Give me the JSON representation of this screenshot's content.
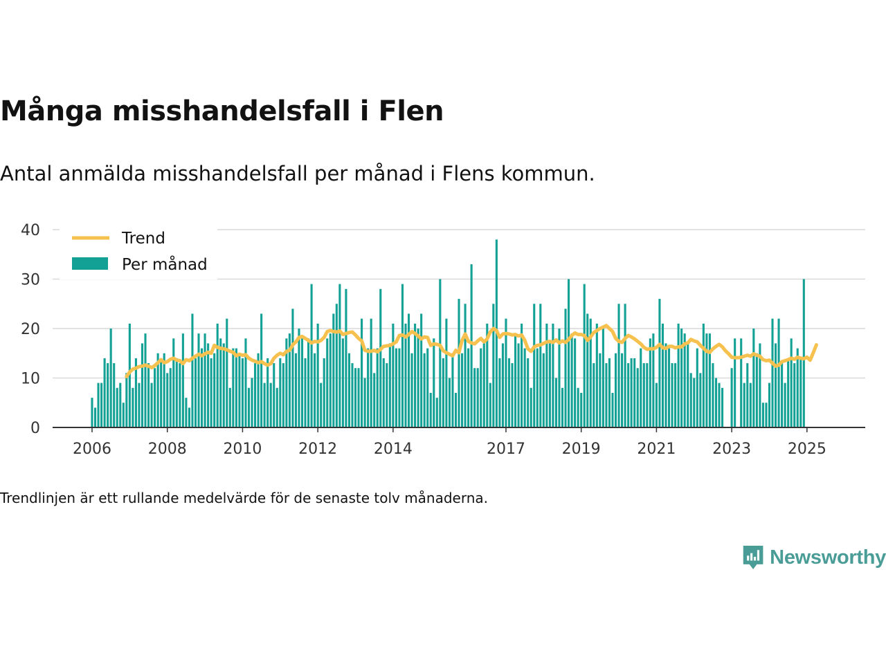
{
  "header": {
    "title": "Många misshandelsfall i Flen",
    "subtitle": "Antal anmälda misshandelsfall per månad i Flens kommun."
  },
  "footer": {
    "note": "Trendlinjen är ett rullande medelvärde för de senaste tolv månaderna.",
    "brand": "Newsworthy"
  },
  "colors": {
    "bars": "#13a196",
    "trend": "#f7c14f",
    "grid": "#d9d9d9",
    "axis": "#333333",
    "brand": "#4a9d96"
  },
  "chart_data": {
    "type": "bar",
    "title": "Många misshandelsfall i Flen",
    "subtitle": "Antal anmälda misshandelsfall per månad i Flens kommun.",
    "x_start": "2006-01",
    "x_ticks": [
      "2006",
      "2008",
      "2010",
      "2012",
      "2014",
      "2017",
      "2019",
      "2021",
      "2023",
      "2025"
    ],
    "y_ticks": [
      0,
      10,
      20,
      30,
      40
    ],
    "ylim": [
      0,
      40
    ],
    "grid": true,
    "legend_position": "top-left",
    "legend": [
      "Trend",
      "Per månad"
    ],
    "series": [
      {
        "name": "Per månad",
        "type": "bar",
        "values": [
          6,
          4,
          9,
          9,
          14,
          13,
          20,
          13,
          8,
          9,
          5,
          11,
          21,
          8,
          14,
          9,
          17,
          19,
          13,
          9,
          12,
          15,
          14,
          15,
          11,
          12,
          18,
          14,
          13,
          19,
          6,
          4,
          23,
          14,
          19,
          16,
          19,
          17,
          14,
          15,
          21,
          18,
          17,
          22,
          8,
          16,
          16,
          15,
          14,
          18,
          8,
          10,
          13,
          15,
          23,
          9,
          14,
          9,
          13,
          8,
          14,
          13,
          18,
          19,
          24,
          15,
          20,
          18,
          14,
          18,
          29,
          15,
          21,
          9,
          14,
          18,
          19,
          23,
          25,
          29,
          18,
          28,
          15,
          13,
          12,
          12,
          22,
          10,
          16,
          22,
          11,
          16,
          28,
          14,
          13,
          17,
          21,
          16,
          16,
          29,
          21,
          23,
          15,
          21,
          20,
          23,
          15,
          16,
          7,
          18,
          6,
          30,
          14,
          22,
          10,
          15,
          7,
          26,
          15,
          25,
          16,
          33,
          12,
          12,
          16,
          17,
          21,
          9,
          25,
          38,
          14,
          17,
          22,
          14,
          13,
          19,
          17,
          21,
          16,
          14,
          8,
          25,
          16,
          25,
          15,
          21,
          17,
          21,
          10,
          20,
          8,
          24,
          30,
          19,
          18,
          8,
          7,
          29,
          23,
          22,
          13,
          21,
          15,
          20,
          13,
          14,
          7,
          15,
          25,
          15,
          25,
          13,
          14,
          14,
          12,
          16,
          13,
          13,
          18,
          19,
          9,
          26,
          21,
          17,
          16,
          13,
          13,
          21,
          20,
          19,
          17,
          11,
          10,
          16,
          11,
          21,
          19,
          19,
          13,
          10,
          9,
          8,
          0,
          0,
          12,
          18,
          0,
          18,
          9,
          13,
          9,
          20,
          15,
          17,
          5,
          5,
          9,
          22,
          17,
          22,
          13,
          9,
          14,
          18,
          13,
          16,
          14,
          30
        ],
        "color": "#13a196"
      },
      {
        "name": "Trend",
        "type": "line",
        "values": [
          null,
          null,
          null,
          null,
          null,
          null,
          null,
          null,
          null,
          null,
          null,
          10.3,
          11.2,
          11.8,
          12.0,
          12.3,
          12.4,
          12.6,
          12.4,
          12.1,
          12.5,
          13.1,
          13.7,
          13.1,
          13.3,
          13.8,
          14.0,
          13.6,
          13.5,
          12.9,
          13.7,
          13.5,
          14.0,
          14.4,
          14.8,
          14.5,
          14.9,
          15.2,
          15.0,
          16.6,
          16.2,
          16.0,
          15.9,
          15.7,
          15.4,
          15.2,
          14.5,
          14.8,
          14.6,
          14.7,
          14.0,
          13.6,
          13.4,
          13.1,
          13.3,
          12.9,
          12.6,
          12.9,
          14.0,
          14.6,
          15.0,
          14.7,
          15.4,
          15.6,
          16.7,
          17.3,
          18.2,
          18.4,
          18.0,
          17.6,
          17.1,
          17.4,
          17.3,
          17.6,
          18.2,
          19.4,
          19.6,
          19.4,
          19.3,
          19.5,
          18.8,
          19.0,
          19.2,
          19.3,
          18.7,
          18.0,
          17.5,
          15.6,
          15.4,
          15.4,
          15.6,
          15.3,
          15.8,
          16.4,
          16.5,
          16.6,
          16.9,
          17.3,
          18.6,
          18.7,
          18.3,
          18.8,
          19.4,
          19.0,
          18.5,
          17.9,
          18.3,
          18.2,
          16.6,
          16.9,
          16.8,
          16.6,
          15.5,
          15.1,
          14.8,
          14.5,
          15.6,
          15.1,
          17.6,
          18.9,
          17.4,
          17.1,
          16.9,
          17.5,
          18.0,
          17.3,
          17.9,
          19.3,
          20.0,
          19.6,
          18.2,
          18.9,
          19.0,
          18.9,
          18.7,
          18.8,
          18.5,
          18.7,
          17.6,
          15.9,
          15.4,
          16.3,
          16.6,
          16.7,
          17.0,
          17.3,
          17.4,
          17.2,
          17.7,
          17.1,
          17.5,
          17.2,
          17.8,
          18.6,
          19.1,
          18.8,
          18.8,
          18.6,
          17.6,
          18.3,
          19.2,
          19.6,
          20.0,
          20.3,
          20.6,
          20.0,
          19.4,
          18.0,
          17.4,
          17.2,
          18.0,
          18.6,
          18.3,
          17.9,
          17.4,
          16.9,
          16.2,
          15.8,
          15.9,
          15.9,
          16.2,
          16.8,
          16.1,
          16.0,
          16.4,
          16.4,
          16.1,
          16.3,
          16.3,
          16.9,
          17.1,
          17.8,
          17.5,
          17.3,
          16.6,
          16.0,
          15.4,
          15.2,
          15.9,
          16.4,
          16.8,
          16.3,
          15.5,
          14.9,
          14.2,
          14.1,
          14.1,
          14.2,
          14.4,
          14.6,
          14.4,
          14.9,
          14.6,
          14.4,
          13.7,
          13.5,
          13.6,
          13.0,
          12.4,
          12.6,
          13.3,
          13.5,
          13.7,
          14.0,
          13.8,
          14.2,
          14.0,
          13.9,
          14.2,
          13.6,
          15.1,
          16.7
        ],
        "color": "#f7c14f"
      }
    ]
  }
}
